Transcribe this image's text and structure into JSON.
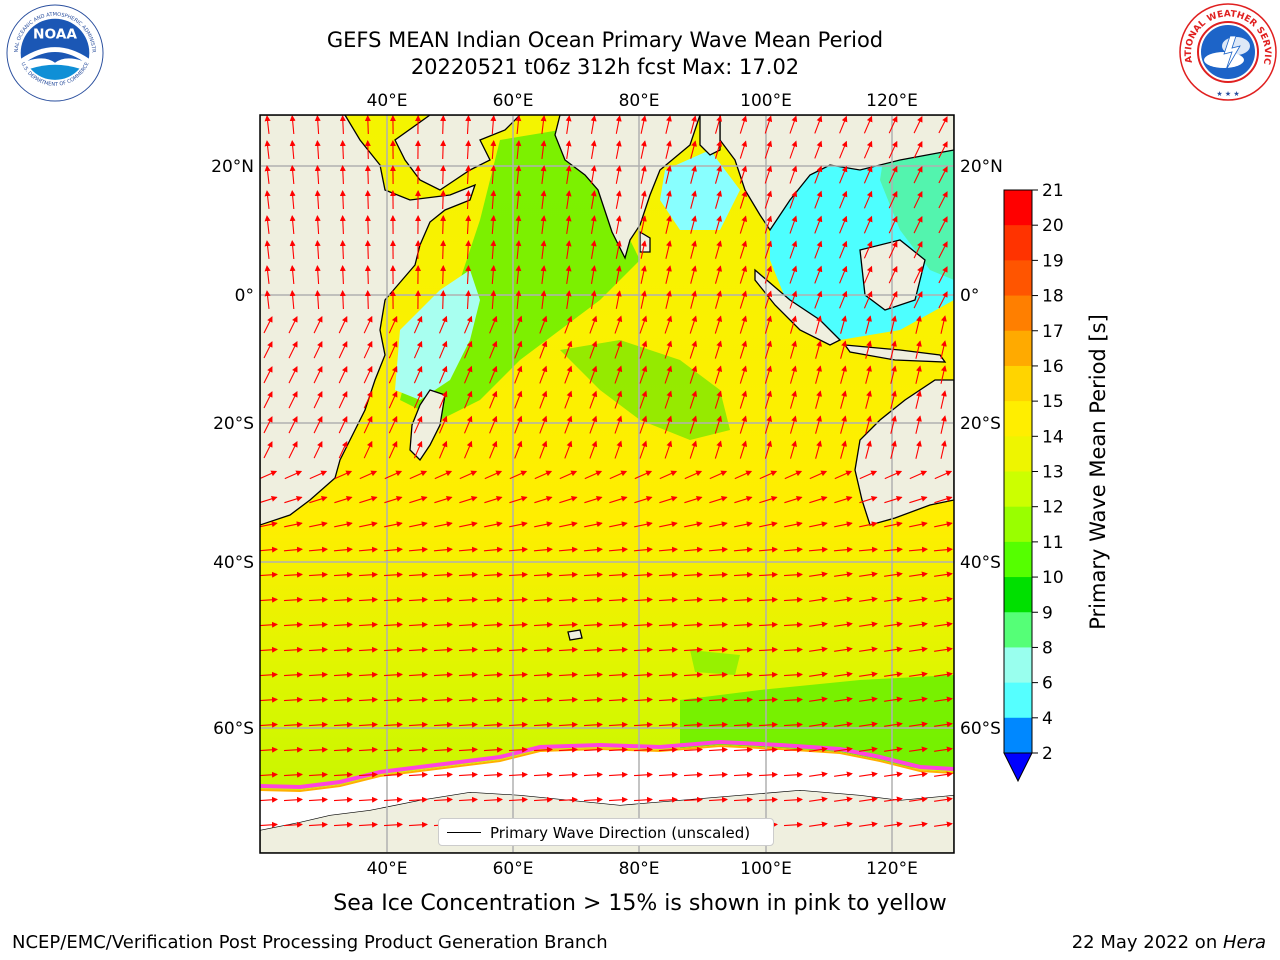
{
  "title": {
    "line1": "GEFS MEAN Indian Ocean Primary Wave Mean Period",
    "line2": "20220521 t06z 312h fcst   Max: 17.02"
  },
  "map": {
    "lon_ticks_top": [
      "40°E",
      "60°E",
      "80°E",
      "100°E",
      "120°E"
    ],
    "lon_ticks_bottom": [
      "40°E",
      "60°E",
      "80°E",
      "100°E",
      "120°E"
    ],
    "lat_ticks_left": [
      "20°N",
      "0°",
      "20°S",
      "40°S",
      "60°S"
    ],
    "lat_ticks_right": [
      "20°N",
      "0°",
      "20°S",
      "40°S",
      "60°S"
    ],
    "legend_label": "Primary Wave Direction (unscaled)",
    "land_color": "#efefdf",
    "ice_color": "#ffffff",
    "arrow_color": "#ff0000"
  },
  "colorbar": {
    "title": "Primary Wave Mean Period [s]",
    "ticks": [
      "21",
      "20",
      "19",
      "18",
      "17",
      "16",
      "15",
      "14",
      "13",
      "12",
      "11",
      "10",
      "9",
      "8",
      "6",
      "4",
      "2"
    ],
    "colors": [
      "#ff0000",
      "#ff3300",
      "#ff5500",
      "#ff7f00",
      "#ffaa00",
      "#ffd400",
      "#ffee00",
      "#eef500",
      "#ccff00",
      "#99ff00",
      "#55ff00",
      "#00e000",
      "#55ff77",
      "#99ffee",
      "#55ffff",
      "#00ffff",
      "#0088ff"
    ],
    "under_color": "#0000ff"
  },
  "subcaption": "Sea Ice Concentration > 15% is shown in pink to yellow",
  "footer": {
    "branch": "NCEP/EMC/Verification Post Processing Product Generation Branch",
    "date_prefix": "22 May 2022 on ",
    "machine": "Hera"
  },
  "logos": {
    "noaa_text": "NOAA",
    "noaa_ring": "NATIONAL OCEANIC AND ATMOSPHERIC ADMINISTRATION",
    "noaa_ring_bottom": "U.S. DEPARTMENT OF COMMERCE",
    "nws_ring": "NATIONAL WEATHER SERVICE"
  }
}
